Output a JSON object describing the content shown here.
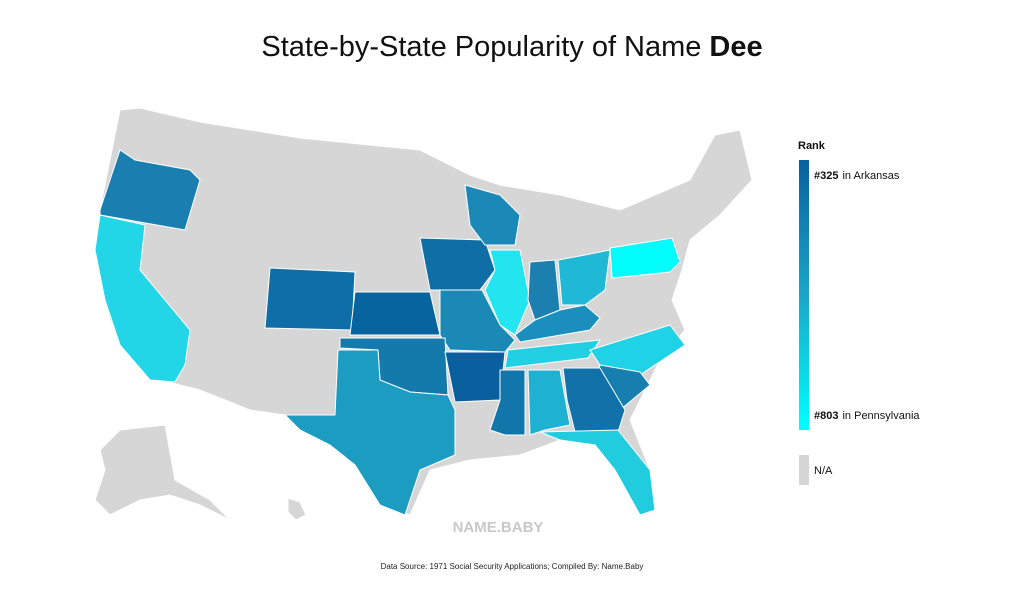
{
  "title": {
    "text": "State-by-State Popularity of Name",
    "name": "Dee"
  },
  "legend": {
    "title": "Rank",
    "high": {
      "rank": "#325",
      "label": "in Arkansas"
    },
    "low": {
      "rank": "#803",
      "label": "in Pennsylvania"
    },
    "na": "N/A"
  },
  "watermark": "NAME.BABY",
  "source": "Data Source: 1971 Social Security Applications; Compiled By: Name.Baby"
}
